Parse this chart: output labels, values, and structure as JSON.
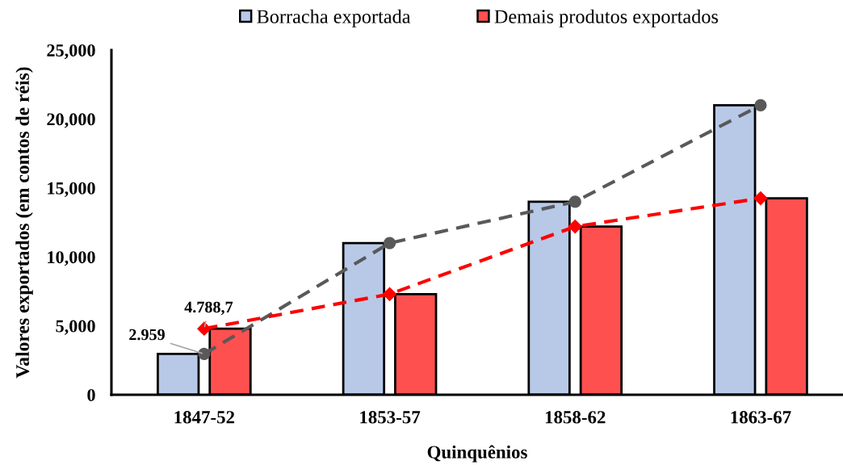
{
  "chart_data": {
    "type": "bar",
    "xlabel": "Quinquênios",
    "ylabel": "Valores exportados (em contos de réis)",
    "categories": [
      "1847-52",
      "1853-57",
      "1858-62",
      "1863-67"
    ],
    "series": [
      {
        "name": "Borracha exportada",
        "color": "#b8c9e8",
        "values": [
          2959,
          11000,
          14000,
          21000
        ]
      },
      {
        "name": "Demais produtos exportados",
        "color": "#ff5050",
        "values": [
          4788.7,
          7300,
          12200,
          14250
        ]
      },
      {
        "type": "line",
        "color": "#595959",
        "marker": "circle",
        "line_style": "dashed",
        "values": [
          2959,
          11000,
          14000,
          21000
        ]
      },
      {
        "type": "line",
        "color": "#ff0000",
        "marker": "diamond",
        "line_style": "dashed",
        "values": [
          4788.7,
          7300,
          12200,
          14250
        ]
      }
    ],
    "ylim": [
      0,
      25000
    ],
    "yticks": [
      0,
      {
        "value": 5000,
        "label": "5,000"
      },
      {
        "value": 10000,
        "label": "10,000"
      },
      {
        "value": 15000,
        "label": "15,000"
      },
      {
        "value": 20000,
        "label": "20,000"
      },
      {
        "value": 25000,
        "label": "25,000"
      }
    ],
    "annotations": [
      {
        "text": "2.959",
        "x": "1847-52",
        "y": 2959
      },
      {
        "text": "4.788,7",
        "x": "1847-52",
        "y": 4788.7
      }
    ],
    "legend": "top"
  }
}
